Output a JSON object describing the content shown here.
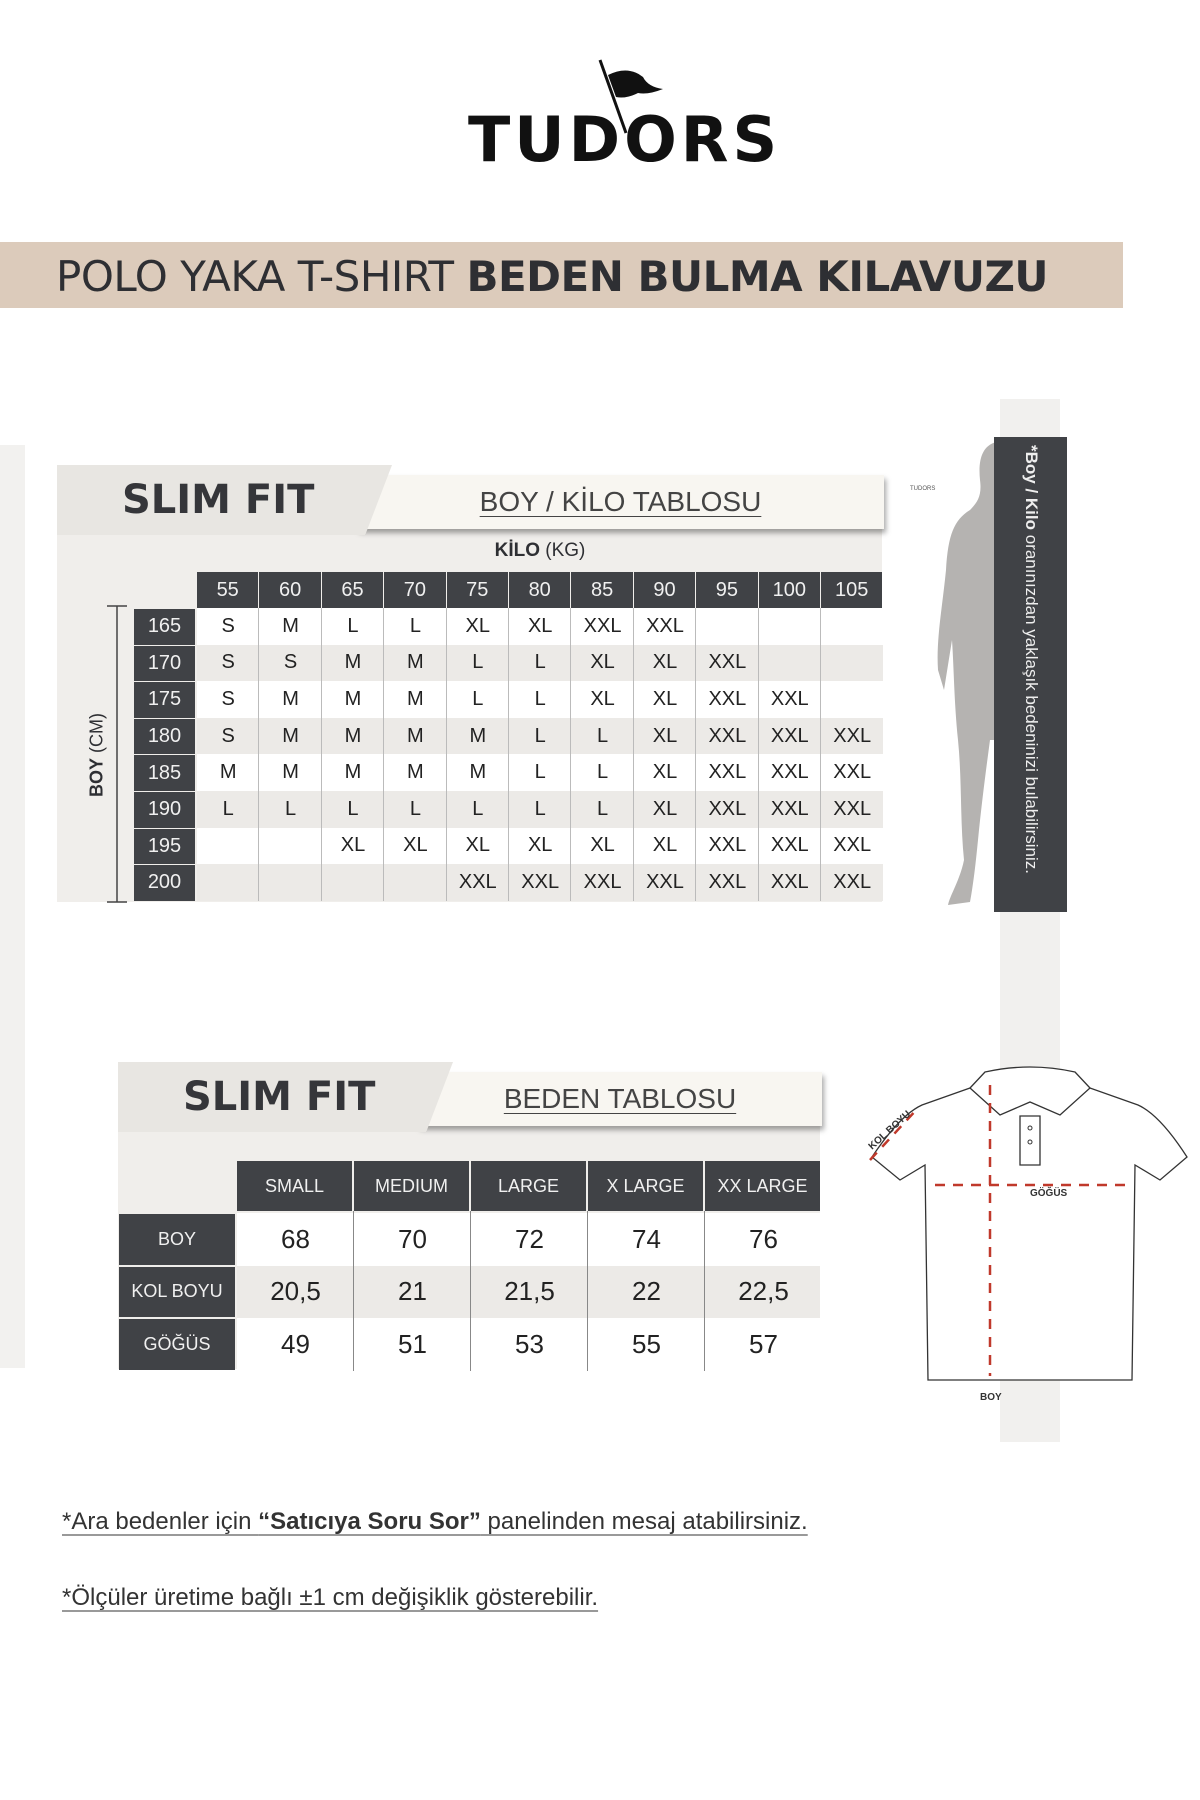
{
  "brand": {
    "name": "TUDORS",
    "small_logo": "TUDORS"
  },
  "banner": {
    "light": "POLO YAKA T-SHIRT ",
    "bold": "BEDEN BULMA KILAVUZU",
    "color": "#dccbbb"
  },
  "colors": {
    "dark": "#404246",
    "accent_red": "#c0392b"
  },
  "table1": {
    "fit": "SLIM FIT",
    "title": "BOY / KİLO TABLOSU",
    "x_label_bold": "KİLO",
    "x_label_unit": " (KG)",
    "y_label_bold": "BOY",
    "y_label_unit": " (CM)",
    "weights": [
      "55",
      "60",
      "65",
      "70",
      "75",
      "80",
      "85",
      "90",
      "95",
      "100",
      "105"
    ],
    "heights": [
      "165",
      "170",
      "175",
      "180",
      "185",
      "190",
      "195",
      "200"
    ],
    "rows": [
      [
        "S",
        "M",
        "L",
        "L",
        "XL",
        "XL",
        "XXL",
        "XXL",
        "",
        "",
        ""
      ],
      [
        "S",
        "S",
        "M",
        "M",
        "L",
        "L",
        "XL",
        "XL",
        "XXL",
        "",
        ""
      ],
      [
        "S",
        "M",
        "M",
        "M",
        "L",
        "L",
        "XL",
        "XL",
        "XXL",
        "XXL",
        ""
      ],
      [
        "S",
        "M",
        "M",
        "M",
        "M",
        "L",
        "L",
        "XL",
        "XXL",
        "XXL",
        "XXL"
      ],
      [
        "M",
        "M",
        "M",
        "M",
        "M",
        "L",
        "L",
        "XL",
        "XXL",
        "XXL",
        "XXL"
      ],
      [
        "L",
        "L",
        "L",
        "L",
        "L",
        "L",
        "L",
        "XL",
        "XXL",
        "XXL",
        "XXL"
      ],
      [
        "",
        "",
        "XL",
        "XL",
        "XL",
        "XL",
        "XL",
        "XL",
        "XXL",
        "XXL",
        "XXL"
      ],
      [
        "",
        "",
        "",
        "",
        "XXL",
        "XXL",
        "XXL",
        "XXL",
        "XXL",
        "XXL",
        "XXL"
      ]
    ]
  },
  "side_note": {
    "bold": "*Boy / Kilo",
    "text": " oranınızdan yaklaşık bedeninizi bulabilirsiniz."
  },
  "table2": {
    "fit": "SLIM FIT",
    "title": "BEDEN TABLOSU",
    "sizes": [
      "SMALL",
      "MEDIUM",
      "LARGE",
      "X LARGE",
      "XX LARGE"
    ],
    "rows": [
      {
        "label": "BOY",
        "values": [
          "68",
          "70",
          "72",
          "74",
          "76"
        ]
      },
      {
        "label": "KOL BOYU",
        "values": [
          "20,5",
          "21",
          "21,5",
          "22",
          "22,5"
        ]
      },
      {
        "label": "GÖĞÜS",
        "values": [
          "49",
          "51",
          "53",
          "55",
          "57"
        ]
      }
    ]
  },
  "shirt_labels": {
    "sleeve": "KOL BOYU",
    "chest": "GÖĞÜS",
    "length": "BOY"
  },
  "footnotes": {
    "note1_a": "*Ara bedenler için ",
    "note1_b": "“Satıcıya Soru Sor”",
    "note1_c": " panelinden mesaj atabilirsiniz.",
    "note2": "*Ölçüler üretime bağlı ±1 cm değişiklik gösterebilir."
  }
}
